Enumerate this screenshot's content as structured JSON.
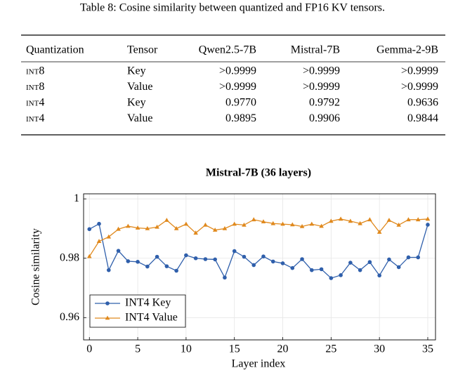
{
  "caption": "Table 8: Cosine similarity between quantized and FP16 KV tensors.",
  "table": {
    "header": [
      "Quantization",
      "Tensor",
      "Qwen2.5-7B",
      "Mistral-7B",
      "Gemma-2-9B"
    ],
    "rows": [
      [
        "int8",
        "Key",
        ">0.9999",
        ">0.9999",
        ">0.9999"
      ],
      [
        "int8",
        "Value",
        ">0.9999",
        ">0.9999",
        ">0.9999"
      ],
      [
        "int4",
        "Key",
        "0.9770",
        "0.9792",
        "0.9636"
      ],
      [
        "int4",
        "Value",
        "0.9895",
        "0.9906",
        "0.9844"
      ]
    ]
  },
  "chart_data": {
    "type": "line",
    "title": "Mistral-7B (36 layers)",
    "x_label": "Layer index",
    "y_label": "Cosine similarity",
    "x": [
      0,
      1,
      2,
      3,
      4,
      5,
      6,
      7,
      8,
      9,
      10,
      11,
      12,
      13,
      14,
      15,
      16,
      17,
      18,
      19,
      20,
      21,
      22,
      23,
      24,
      25,
      26,
      27,
      28,
      29,
      30,
      31,
      32,
      33,
      34,
      35
    ],
    "xlim": [
      -0.6,
      35.8
    ],
    "xticks": [
      0,
      5,
      10,
      15,
      20,
      25,
      30,
      35
    ],
    "ylim": [
      0.9525,
      1.0017
    ],
    "yticks": [
      0.96,
      0.98,
      1
    ],
    "grid": true,
    "legend": "lower left",
    "series": [
      {
        "name": "INT4 Key",
        "color": "#2f5fab",
        "marker": "circle",
        "values": [
          0.9898,
          0.9916,
          0.976,
          0.9825,
          0.979,
          0.9788,
          0.9772,
          0.9805,
          0.9773,
          0.9758,
          0.981,
          0.98,
          0.9797,
          0.9796,
          0.9735,
          0.9824,
          0.9805,
          0.9777,
          0.9806,
          0.9789,
          0.9783,
          0.9767,
          0.9797,
          0.976,
          0.9763,
          0.9733,
          0.9743,
          0.9785,
          0.976,
          0.9787,
          0.9742,
          0.9796,
          0.977,
          0.9803,
          0.9803,
          0.9913
        ]
      },
      {
        "name": "INT4 Value",
        "color": "#e0891d",
        "marker": "triangle",
        "values": [
          0.9806,
          0.9857,
          0.9872,
          0.9898,
          0.9908,
          0.9902,
          0.99,
          0.9905,
          0.9928,
          0.99,
          0.9915,
          0.9885,
          0.9912,
          0.9895,
          0.99,
          0.9915,
          0.9912,
          0.993,
          0.9923,
          0.9917,
          0.9915,
          0.9913,
          0.9907,
          0.9915,
          0.9908,
          0.9925,
          0.9932,
          0.9925,
          0.9917,
          0.993,
          0.9888,
          0.9928,
          0.9912,
          0.993,
          0.993,
          0.9932
        ]
      }
    ]
  }
}
